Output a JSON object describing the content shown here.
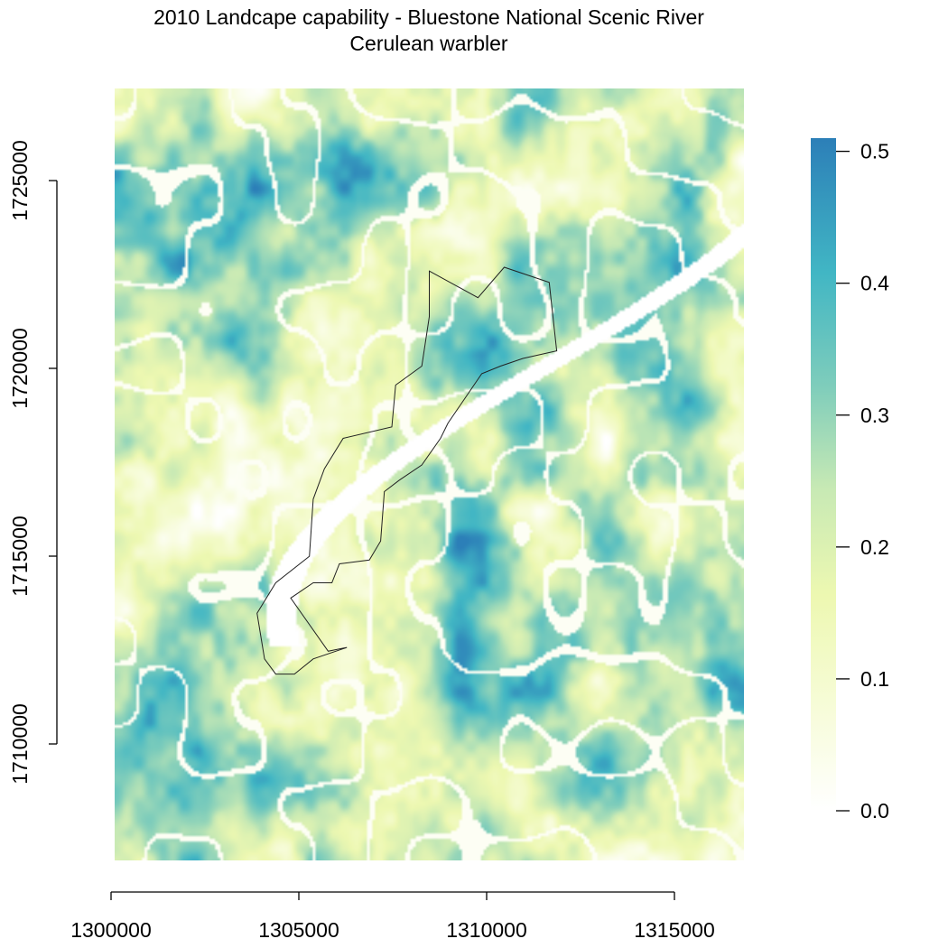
{
  "chart_data": {
    "type": "heatmap",
    "title": "2010 Landcape capability - Bluestone National Scenic River",
    "subtitle": "Cerulean warbler",
    "xlabel": "",
    "ylabel": "",
    "x_ticks": [
      1300000,
      1305000,
      1310000,
      1315000
    ],
    "x_tick_labels": [
      "1300000",
      "1305000",
      "1310000",
      "1315000"
    ],
    "y_ticks": [
      1710000,
      1715000,
      1720000,
      1725000
    ],
    "y_tick_labels": [
      "1710000",
      "1715000",
      "1720000",
      "1725000"
    ],
    "xlim": [
      1300100,
      1316900
    ],
    "ylim": [
      1707000,
      1727300
    ],
    "value_range": [
      0,
      0.51
    ],
    "colorbar": {
      "ticks": [
        0,
        0.1,
        0.2,
        0.3,
        0.4,
        0.5
      ],
      "tick_labels": [
        "0.0",
        "0.1",
        "0.2",
        "0.3",
        "0.4",
        "0.5"
      ],
      "colors": [
        "#ffffff",
        "#f7fcd9",
        "#edf8b1",
        "#c7e9b4",
        "#7fcdbb",
        "#41b6c4",
        "#2c7fb8"
      ],
      "placement": "right"
    },
    "boundary": {
      "name": "Bluestone National Scenic River",
      "path": [
        [
          1308500,
          1722500
        ],
        [
          1309800,
          1721800
        ],
        [
          1310500,
          1722600
        ],
        [
          1311700,
          1722200
        ],
        [
          1311900,
          1720400
        ],
        [
          1311000,
          1720200
        ],
        [
          1310400,
          1720000
        ],
        [
          1309900,
          1719800
        ],
        [
          1309000,
          1718500
        ],
        [
          1308800,
          1718100
        ],
        [
          1308300,
          1717400
        ],
        [
          1307700,
          1717000
        ],
        [
          1307300,
          1716700
        ],
        [
          1307200,
          1715400
        ],
        [
          1306900,
          1714900
        ],
        [
          1306100,
          1714800
        ],
        [
          1305900,
          1714300
        ],
        [
          1305400,
          1714300
        ],
        [
          1304800,
          1713900
        ],
        [
          1305800,
          1712500
        ],
        [
          1306300,
          1712600
        ],
        [
          1305400,
          1712300
        ],
        [
          1304900,
          1711900
        ],
        [
          1304400,
          1711900
        ],
        [
          1304100,
          1712300
        ],
        [
          1303900,
          1713500
        ],
        [
          1304400,
          1714300
        ],
        [
          1305300,
          1715000
        ],
        [
          1305400,
          1716500
        ],
        [
          1305700,
          1717300
        ],
        [
          1306200,
          1718100
        ],
        [
          1307500,
          1718400
        ],
        [
          1307600,
          1719500
        ],
        [
          1308300,
          1720000
        ],
        [
          1308500,
          1721300
        ],
        [
          1308500,
          1722500
        ]
      ]
    },
    "grid": false,
    "legend": "colorbar right"
  }
}
